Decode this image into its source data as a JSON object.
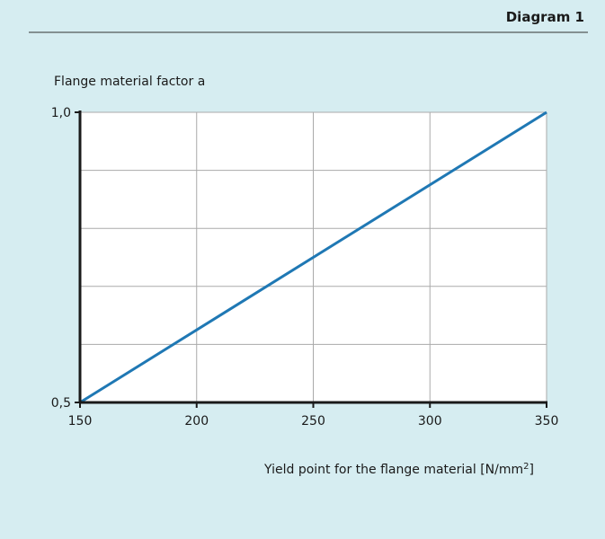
{
  "header": {
    "title": "Diagram 1"
  },
  "chart_data": {
    "type": "line",
    "title": "",
    "ylabel": "Flange material factor a",
    "xlabel_main": "Yield point for the flange material [N/mm",
    "xlabel_sup": "2",
    "xlabel_end": "]",
    "xlim": [
      150,
      350
    ],
    "ylim": [
      0.5,
      1.0
    ],
    "xticks": [
      150,
      200,
      250,
      300,
      350
    ],
    "xtick_labels": [
      "150",
      "200",
      "250",
      "300",
      "350"
    ],
    "ytick_labels": [
      "0,5",
      "1,0"
    ],
    "ygrid": [
      0.6,
      0.7,
      0.8,
      0.9
    ],
    "grid": true,
    "line_color": "#1f78b4",
    "series": [
      {
        "x": [
          150,
          350
        ],
        "y": [
          0.5,
          1.0
        ]
      }
    ]
  }
}
